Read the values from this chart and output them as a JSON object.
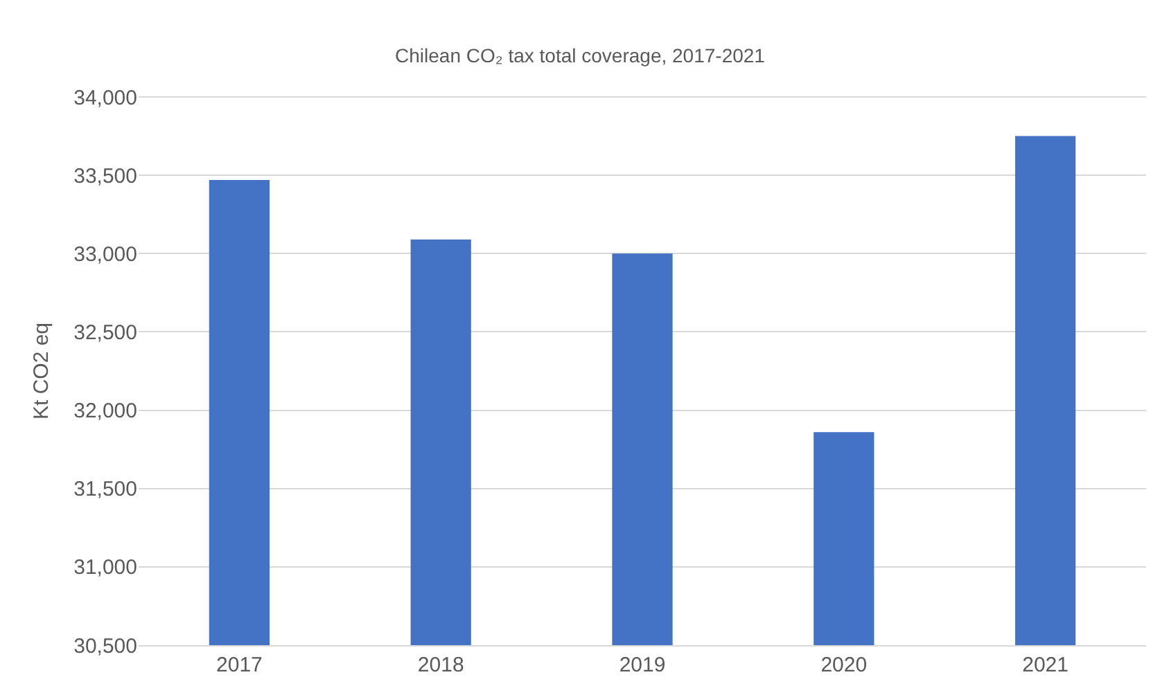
{
  "chart_data": {
    "type": "bar",
    "title": "Chilean CO₂ tax total coverage, 2017-2021",
    "ylabel": "Kt CO2 eq",
    "categories": [
      "2017",
      "2018",
      "2019",
      "2020",
      "2021"
    ],
    "values": [
      33470,
      33090,
      33000,
      31860,
      33750
    ],
    "color": "#4472c4",
    "ylim": [
      30500,
      34000
    ],
    "yticks": [
      {
        "value": 30500,
        "label": "30,500"
      },
      {
        "value": 31000,
        "label": "31,000"
      },
      {
        "value": 31500,
        "label": "31,500"
      },
      {
        "value": 32000,
        "label": "32,000"
      },
      {
        "value": 32500,
        "label": "32,500"
      },
      {
        "value": 33000,
        "label": "33,000"
      },
      {
        "value": 33500,
        "label": "33,500"
      },
      {
        "value": 34000,
        "label": "34,000"
      }
    ],
    "grid": "y"
  }
}
